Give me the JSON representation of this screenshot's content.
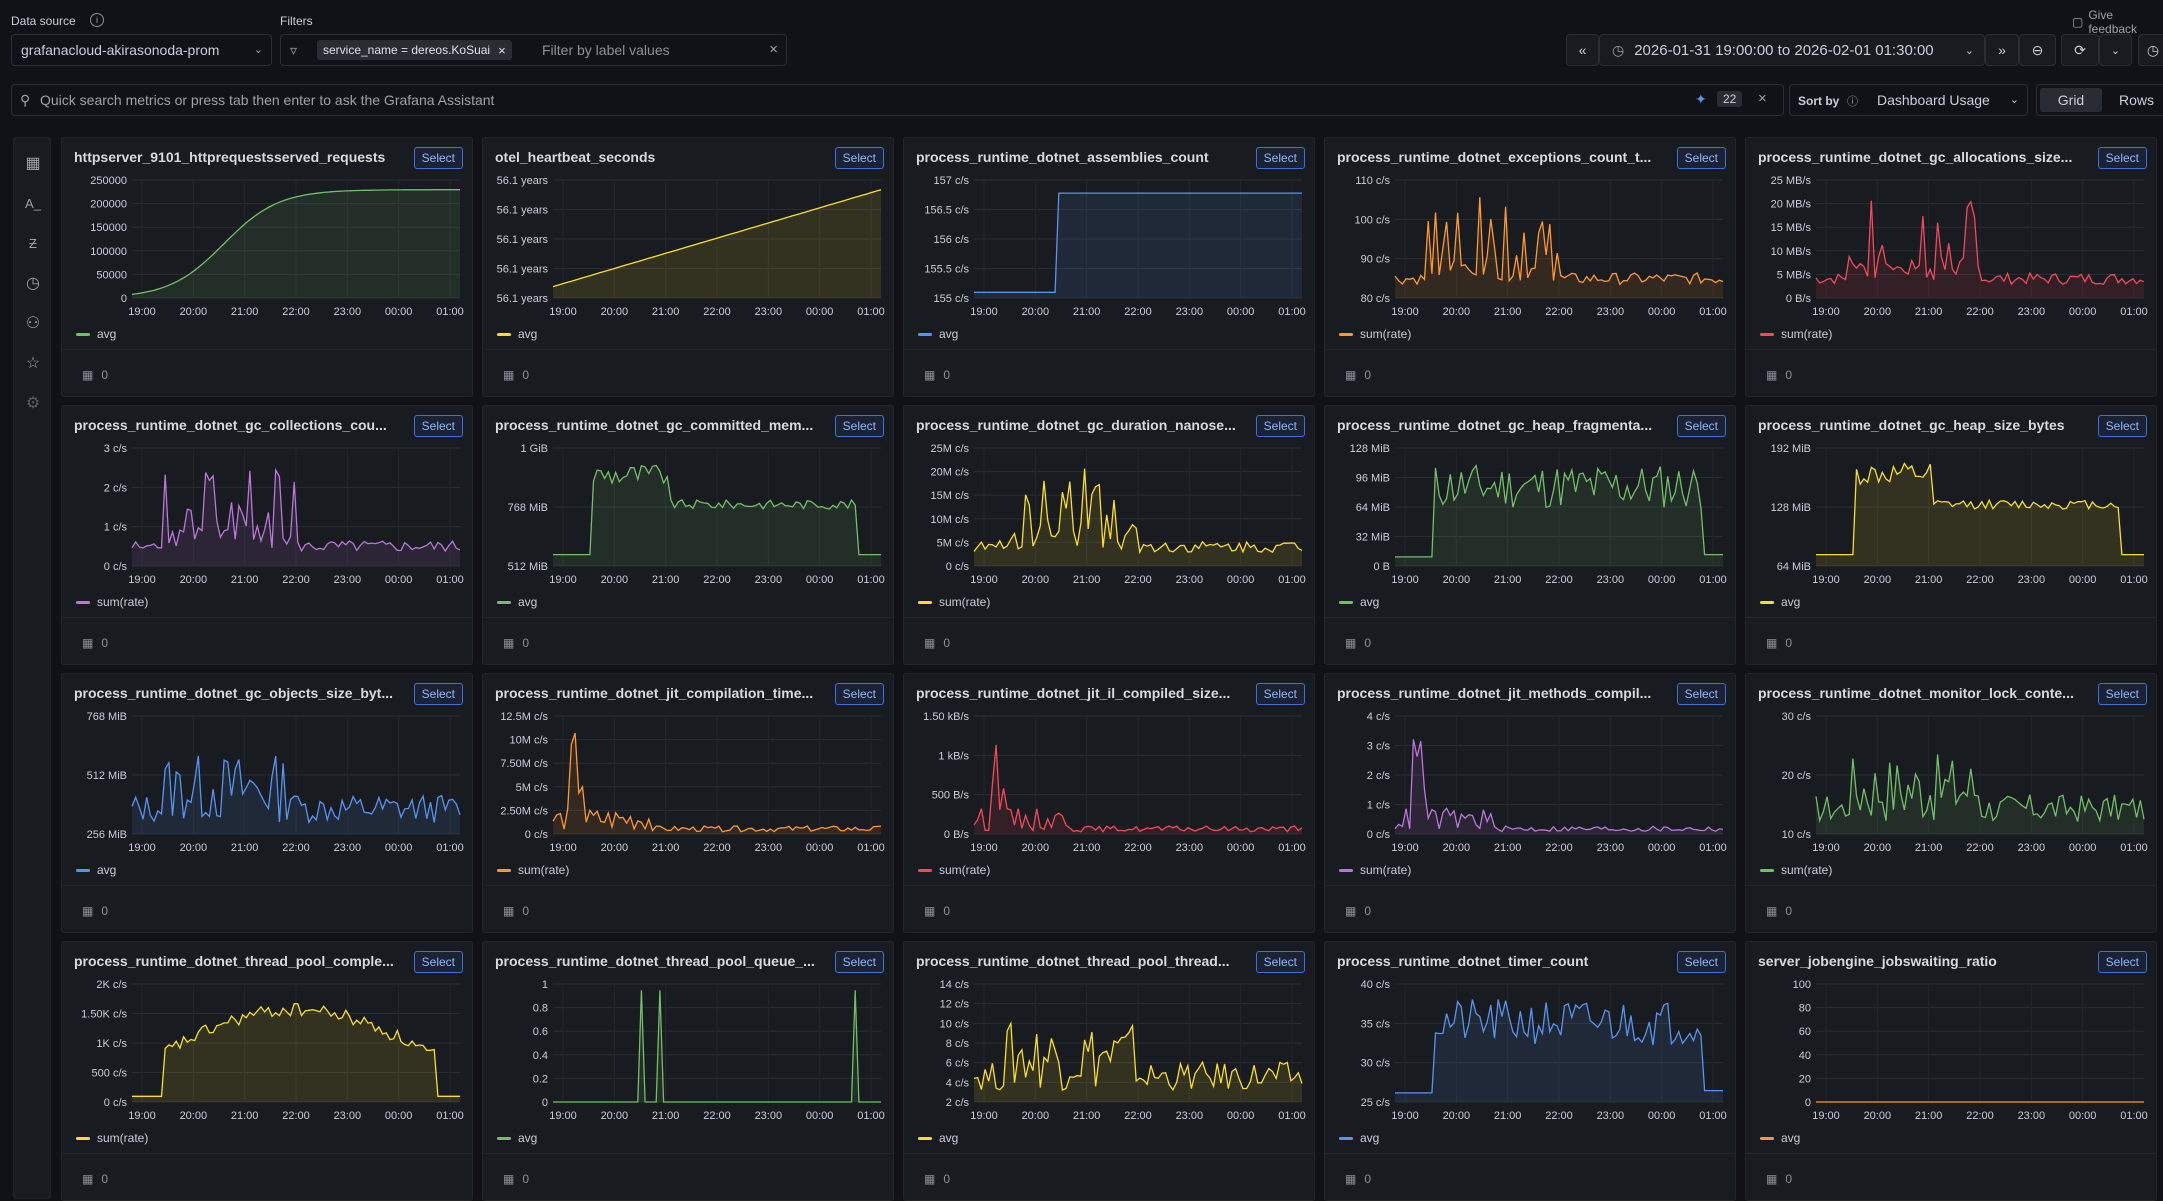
{
  "header": {
    "datasource_label": "Data source",
    "datasource_value": "grafanacloud-akirasonoda-prom",
    "filters_label": "Filters",
    "filter_chip": "service_name = dereos.KoSuai",
    "filter_placeholder": "Filter by label values",
    "feedback": "Give feedback",
    "time_range": "2026-01-31 19:00:00 to 2026-02-01 01:30:00"
  },
  "search": {
    "placeholder": "Quick search metrics or press tab then enter to ask the Grafana Assistant",
    "badge": "22",
    "sort_label": "Sort by",
    "sort_value": "Dashboard Usage",
    "view_grid": "Grid",
    "view_rows": "Rows"
  },
  "colors": {
    "green": "#73bf69",
    "yellow": "#fade2a",
    "blue": "#5794f2",
    "orange": "#ff9830",
    "red": "#f2495c",
    "purple": "#b877d9"
  },
  "panels": [
    {
      "title": "httpserver_9101_httprequestsserved_requests",
      "select": "Select",
      "legend": "avg",
      "count": "0",
      "color": "green",
      "shape": "sigmoid",
      "yticks": [
        "250000",
        "200000",
        "150000",
        "100000",
        "50000",
        "0"
      ],
      "xticks": [
        "19:00",
        "20:00",
        "21:00",
        "22:00",
        "23:00",
        "00:00",
        "01:00"
      ]
    },
    {
      "title": "otel_heartbeat_seconds",
      "select": "Select",
      "legend": "avg",
      "count": "0",
      "color": "yellow",
      "shape": "linear",
      "yticks": [
        "56.1 years",
        "56.1 years",
        "56.1 years",
        "56.1 years",
        "56.1 years"
      ],
      "xticks": [
        "19:00",
        "20:00",
        "21:00",
        "22:00",
        "23:00",
        "00:00",
        "01:00"
      ]
    },
    {
      "title": "process_runtime_dotnet_assemblies_count",
      "select": "Select",
      "legend": "avg",
      "count": "0",
      "color": "blue",
      "shape": "step",
      "yticks": [
        "157 c/s",
        "156.5 c/s",
        "156 c/s",
        "155.5 c/s",
        "155 c/s"
      ],
      "xticks": [
        "19:00",
        "20:00",
        "21:00",
        "22:00",
        "23:00",
        "00:00",
        "01:00"
      ]
    },
    {
      "title": "process_runtime_dotnet_exceptions_count_t...",
      "select": "Select",
      "legend": "sum(rate)",
      "count": "0",
      "color": "orange",
      "shape": "spiky",
      "yticks": [
        "110 c/s",
        "100 c/s",
        "90 c/s",
        "80 c/s"
      ],
      "xticks": [
        "19:00",
        "20:00",
        "21:00",
        "22:00",
        "23:00",
        "00:00",
        "01:00"
      ]
    },
    {
      "title": "process_runtime_dotnet_gc_allocations_size...",
      "select": "Select",
      "legend": "sum(rate)",
      "count": "0",
      "color": "red",
      "shape": "spiky",
      "yticks": [
        "25 MB/s",
        "20 MB/s",
        "15 MB/s",
        "10 MB/s",
        "5 MB/s",
        "0 B/s"
      ],
      "xticks": [
        "19:00",
        "20:00",
        "21:00",
        "22:00",
        "23:00",
        "00:00",
        "01:00"
      ]
    },
    {
      "title": "process_runtime_dotnet_gc_collections_cou...",
      "select": "Select",
      "legend": "sum(rate)",
      "count": "0",
      "color": "purple",
      "shape": "spiky",
      "yticks": [
        "3 c/s",
        "2 c/s",
        "1 c/s",
        "0 c/s"
      ],
      "xticks": [
        "19:00",
        "20:00",
        "21:00",
        "22:00",
        "23:00",
        "00:00",
        "01:00"
      ]
    },
    {
      "title": "process_runtime_dotnet_gc_committed_mem...",
      "select": "Select",
      "legend": "avg",
      "count": "0",
      "color": "green",
      "shape": "plateau",
      "yticks": [
        "1 GiB",
        "768 MiB",
        "512 MiB"
      ],
      "xticks": [
        "19:00",
        "20:00",
        "21:00",
        "22:00",
        "23:00",
        "00:00",
        "01:00"
      ]
    },
    {
      "title": "process_runtime_dotnet_gc_duration_nanose...",
      "select": "Select",
      "legend": "sum(rate)",
      "count": "0",
      "color": "yellow",
      "shape": "spiky",
      "yticks": [
        "25M c/s",
        "20M c/s",
        "15M c/s",
        "10M c/s",
        "5M c/s",
        "0 c/s"
      ],
      "xticks": [
        "19:00",
        "20:00",
        "21:00",
        "22:00",
        "23:00",
        "00:00",
        "01:00"
      ]
    },
    {
      "title": "process_runtime_dotnet_gc_heap_fragmenta...",
      "select": "Select",
      "legend": "avg",
      "count": "0",
      "color": "green",
      "shape": "noisyplateau",
      "yticks": [
        "128 MiB",
        "96 MiB",
        "64 MiB",
        "32 MiB",
        "0 B"
      ],
      "xticks": [
        "19:00",
        "20:00",
        "21:00",
        "22:00",
        "23:00",
        "00:00",
        "01:00"
      ]
    },
    {
      "title": "process_runtime_dotnet_gc_heap_size_bytes",
      "select": "Select",
      "legend": "avg",
      "count": "0",
      "color": "yellow",
      "shape": "plateau",
      "yticks": [
        "192 MiB",
        "128 MiB",
        "64 MiB"
      ],
      "xticks": [
        "19:00",
        "20:00",
        "21:00",
        "22:00",
        "23:00",
        "00:00",
        "01:00"
      ]
    },
    {
      "title": "process_runtime_dotnet_gc_objects_size_byt...",
      "select": "Select",
      "legend": "avg",
      "count": "0",
      "color": "blue",
      "shape": "noisy",
      "yticks": [
        "768 MiB",
        "512 MiB",
        "256 MiB"
      ],
      "xticks": [
        "19:00",
        "20:00",
        "21:00",
        "22:00",
        "23:00",
        "00:00",
        "01:00"
      ]
    },
    {
      "title": "process_runtime_dotnet_jit_compilation_time...",
      "select": "Select",
      "legend": "sum(rate)",
      "count": "0",
      "color": "orange",
      "shape": "earlyspike",
      "yticks": [
        "12.5M c/s",
        "10M c/s",
        "7.50M c/s",
        "5M c/s",
        "2.50M c/s",
        "0 c/s"
      ],
      "xticks": [
        "19:00",
        "20:00",
        "21:00",
        "22:00",
        "23:00",
        "00:00",
        "01:00"
      ]
    },
    {
      "title": "process_runtime_dotnet_jit_il_compiled_size...",
      "select": "Select",
      "legend": "sum(rate)",
      "count": "0",
      "color": "red",
      "shape": "earlyspike",
      "yticks": [
        "1.50 kB/s",
        "1 kB/s",
        "500 B/s",
        "0 B/s"
      ],
      "xticks": [
        "19:00",
        "20:00",
        "21:00",
        "22:00",
        "23:00",
        "00:00",
        "01:00"
      ]
    },
    {
      "title": "process_runtime_dotnet_jit_methods_compil...",
      "select": "Select",
      "legend": "sum(rate)",
      "count": "0",
      "color": "purple",
      "shape": "earlyspike",
      "yticks": [
        "4 c/s",
        "3 c/s",
        "2 c/s",
        "1 c/s",
        "0 c/s"
      ],
      "xticks": [
        "19:00",
        "20:00",
        "21:00",
        "22:00",
        "23:00",
        "00:00",
        "01:00"
      ]
    },
    {
      "title": "process_runtime_dotnet_monitor_lock_conte...",
      "select": "Select",
      "legend": "sum(rate)",
      "count": "0",
      "color": "green",
      "shape": "noisy",
      "yticks": [
        "30 c/s",
        "20 c/s",
        "10 c/s"
      ],
      "xticks": [
        "19:00",
        "20:00",
        "21:00",
        "22:00",
        "23:00",
        "00:00",
        "01:00"
      ]
    },
    {
      "title": "process_runtime_dotnet_thread_pool_comple...",
      "select": "Select",
      "legend": "sum(rate)",
      "count": "0",
      "color": "yellow",
      "shape": "hump",
      "yticks": [
        "2K c/s",
        "1.50K c/s",
        "1K c/s",
        "500 c/s",
        "0 c/s"
      ],
      "xticks": [
        "19:00",
        "20:00",
        "21:00",
        "22:00",
        "23:00",
        "00:00",
        "01:00"
      ]
    },
    {
      "title": "process_runtime_dotnet_thread_pool_queue_...",
      "select": "Select",
      "legend": "avg",
      "count": "0",
      "color": "green",
      "shape": "impulses",
      "yticks": [
        "1",
        "0.8",
        "0.6",
        "0.4",
        "0.2",
        "0"
      ],
      "xticks": [
        "19:00",
        "20:00",
        "21:00",
        "22:00",
        "23:00",
        "00:00",
        "01:00"
      ]
    },
    {
      "title": "process_runtime_dotnet_thread_pool_thread...",
      "select": "Select",
      "legend": "avg",
      "count": "0",
      "color": "yellow",
      "shape": "noisy",
      "yticks": [
        "14 c/s",
        "12 c/s",
        "10 c/s",
        "8 c/s",
        "6 c/s",
        "4 c/s",
        "2 c/s"
      ],
      "xticks": [
        "19:00",
        "20:00",
        "21:00",
        "22:00",
        "23:00",
        "00:00",
        "01:00"
      ]
    },
    {
      "title": "process_runtime_dotnet_timer_count",
      "select": "Select",
      "legend": "avg",
      "count": "0",
      "color": "blue",
      "shape": "noisyplateau",
      "yticks": [
        "40 c/s",
        "35 c/s",
        "30 c/s",
        "25 c/s"
      ],
      "xticks": [
        "19:00",
        "20:00",
        "21:00",
        "22:00",
        "23:00",
        "00:00",
        "01:00"
      ]
    },
    {
      "title": "server_jobengine_jobswaiting_ratio",
      "select": "Select",
      "legend": "avg",
      "count": "0",
      "color": "orange",
      "shape": "flat",
      "yticks": [
        "100",
        "80",
        "60",
        "40",
        "20",
        "0"
      ],
      "xticks": [
        "19:00",
        "20:00",
        "21:00",
        "22:00",
        "23:00",
        "00:00",
        "01:00"
      ]
    }
  ]
}
